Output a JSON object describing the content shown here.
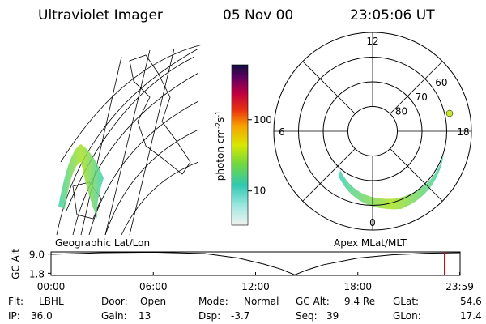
{
  "header": {
    "title": "Ultraviolet Imager",
    "date": "05 Nov 00",
    "time": "23:05:06 UT"
  },
  "colorbar": {
    "label": "photon cm",
    "exp1": "-2",
    "unit2": "s",
    "exp2": "-1",
    "log": true,
    "clim": [
      3.3,
      590
    ],
    "ticks": [
      10,
      100
    ]
  },
  "panels": {
    "left_caption": "Geographic Lat/Lon",
    "right_caption": "Apex MLat/MLT"
  },
  "polar": {
    "rlim": [
      90,
      50
    ],
    "lat_ticks": [
      80,
      70,
      60
    ],
    "mlt_ticks": [
      12,
      18,
      6,
      0
    ]
  },
  "altitude_plot": {
    "ylabel": "GC Alt",
    "ylim": [
      1.0,
      9.8
    ],
    "yticks": [
      {
        "value": 9,
        "label": "9.0"
      },
      1.8
    ],
    "xlim": [
      0,
      24
    ],
    "xticks": [
      {
        "value": 0,
        "label": "00:00"
      },
      {
        "value": 6,
        "label": "06:00"
      },
      {
        "value": 12,
        "label": "12:00"
      },
      {
        "value": 18,
        "label": "18:00"
      },
      {
        "value": 23.98,
        "label": "23:59"
      }
    ],
    "x": [
      0,
      3,
      6,
      9,
      11,
      12.5,
      13.5,
      14.3,
      15,
      16,
      18,
      20,
      22,
      23.98
    ],
    "values": [
      8.9,
      9.5,
      9.7,
      9.2,
      7.5,
      5.2,
      3.3,
      1.2,
      3.0,
      5.0,
      7.5,
      8.7,
      9.3,
      9.5
    ],
    "color": "#000000",
    "marker_x": 23.085,
    "marker_color": "#e00000"
  },
  "info": [
    [
      [
        "Flt:",
        "LBHL"
      ],
      [
        "Door:",
        "Open"
      ],
      [
        "Mode:",
        "Normal"
      ],
      [
        "GC Alt:",
        "9.4 Re"
      ],
      [
        "GLat:",
        "54.6"
      ]
    ],
    [
      [
        "IP:",
        "36.0"
      ],
      [
        "Gain:",
        "13"
      ],
      [
        "Dsp:",
        "-3.7"
      ],
      [
        "Seq:",
        "39"
      ],
      [
        "GLon:",
        "17.4"
      ]
    ]
  ]
}
